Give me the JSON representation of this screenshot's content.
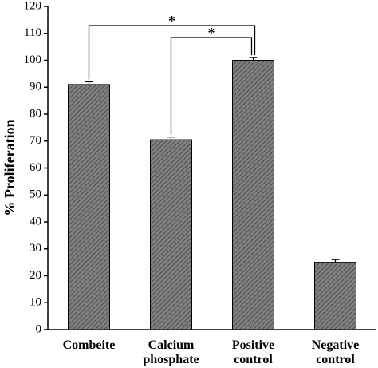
{
  "chart_data": {
    "type": "bar",
    "categories": [
      "Combeite",
      "Calcium phosphate",
      "Positive control",
      "Negative control"
    ],
    "values": [
      91,
      70.5,
      100,
      25
    ],
    "errors": [
      1,
      1,
      1,
      1
    ],
    "color": "#7f7f7f",
    "ylabel": "% Proliferation",
    "ylim": [
      0,
      120
    ],
    "yticks": [
      0,
      10,
      20,
      30,
      40,
      50,
      60,
      70,
      80,
      90,
      100,
      110,
      120
    ],
    "annotations": [
      "*",
      "*"
    ]
  }
}
